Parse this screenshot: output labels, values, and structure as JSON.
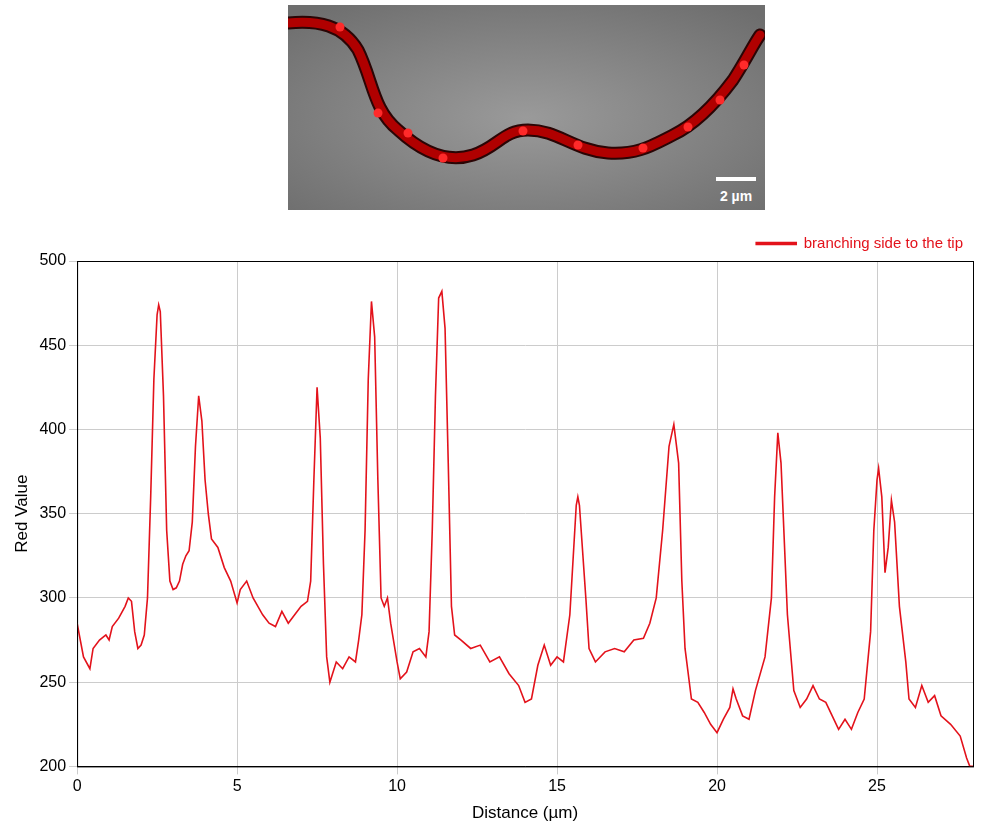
{
  "micrograph": {
    "scale_bar_label": "2 µm"
  },
  "chart_data": {
    "type": "line",
    "x_label": "Distance (µm)",
    "y_label": "Red Value",
    "xlim": [
      0,
      28
    ],
    "xticks": [
      0,
      5,
      10,
      15,
      20,
      25
    ],
    "ylim": [
      200,
      500
    ],
    "yticks": [
      200,
      250,
      300,
      350,
      400,
      450,
      500
    ],
    "grid": true,
    "legend": "upper right",
    "series": [
      {
        "name": "branching side to the tip",
        "color": "#e3121b",
        "x": [
          0,
          0.2,
          0.4,
          0.5,
          0.7,
          0.9,
          1.0,
          1.1,
          1.3,
          1.5,
          1.6,
          1.7,
          1.8,
          1.9,
          2.0,
          2.1,
          2.2,
          2.3,
          2.4,
          2.5,
          2.55,
          2.6,
          2.7,
          2.8,
          2.9,
          3.0,
          3.1,
          3.2,
          3.3,
          3.4,
          3.5,
          3.6,
          3.7,
          3.8,
          3.9,
          4.0,
          4.1,
          4.2,
          4.4,
          4.6,
          4.8,
          5.0,
          5.1,
          5.3,
          5.5,
          5.8,
          6.0,
          6.2,
          6.4,
          6.6,
          6.8,
          7.0,
          7.2,
          7.3,
          7.4,
          7.5,
          7.6,
          7.7,
          7.8,
          7.9,
          8.1,
          8.3,
          8.5,
          8.7,
          8.8,
          8.9,
          9.0,
          9.1,
          9.2,
          9.3,
          9.4,
          9.5,
          9.6,
          9.7,
          9.8,
          10.0,
          10.1,
          10.3,
          10.5,
          10.7,
          10.9,
          11.0,
          11.1,
          11.2,
          11.3,
          11.4,
          11.5,
          11.6,
          11.7,
          11.8,
          12.0,
          12.3,
          12.6,
          12.9,
          13.2,
          13.5,
          13.8,
          14.0,
          14.2,
          14.4,
          14.6,
          14.8,
          15.0,
          15.2,
          15.4,
          15.6,
          15.65,
          15.7,
          15.9,
          16.0,
          16.2,
          16.5,
          16.8,
          17.1,
          17.4,
          17.7,
          17.9,
          18.1,
          18.3,
          18.5,
          18.65,
          18.8,
          18.9,
          19.0,
          19.2,
          19.4,
          19.6,
          19.8,
          20.0,
          20.2,
          20.4,
          20.5,
          20.6,
          20.8,
          21.0,
          21.2,
          21.5,
          21.7,
          21.8,
          21.9,
          22.0,
          22.2,
          22.4,
          22.6,
          22.8,
          23.0,
          23.2,
          23.4,
          23.6,
          23.8,
          24.0,
          24.2,
          24.4,
          24.6,
          24.8,
          24.9,
          25.0,
          25.05,
          25.15,
          25.25,
          25.35,
          25.45,
          25.55,
          25.7,
          25.9,
          26.0,
          26.2,
          26.4,
          26.6,
          26.8,
          27.0,
          27.3,
          27.6,
          27.8,
          27.9,
          28.0
        ],
        "values": [
          285,
          265,
          258,
          270,
          275,
          278,
          275,
          283,
          288,
          295,
          300,
          298,
          280,
          270,
          272,
          278,
          300,
          360,
          430,
          468,
          474,
          470,
          420,
          340,
          310,
          305,
          306,
          310,
          320,
          325,
          328,
          345,
          390,
          420,
          405,
          370,
          350,
          335,
          330,
          318,
          310,
          297,
          305,
          310,
          300,
          290,
          285,
          283,
          292,
          285,
          290,
          295,
          298,
          310,
          370,
          425,
          395,
          320,
          265,
          250,
          262,
          258,
          265,
          262,
          275,
          290,
          340,
          430,
          476,
          455,
          370,
          300,
          295,
          300,
          285,
          262,
          252,
          256,
          268,
          270,
          265,
          280,
          340,
          420,
          478,
          482,
          460,
          380,
          295,
          278,
          275,
          270,
          272,
          262,
          265,
          255,
          248,
          238,
          240,
          260,
          272,
          260,
          265,
          262,
          290,
          355,
          360,
          355,
          300,
          270,
          262,
          268,
          270,
          268,
          275,
          276,
          285,
          300,
          340,
          390,
          403,
          380,
          310,
          270,
          240,
          238,
          232,
          225,
          220,
          228,
          235,
          246,
          240,
          230,
          228,
          245,
          265,
          300,
          360,
          398,
          380,
          290,
          245,
          235,
          240,
          248,
          240,
          238,
          230,
          222,
          228,
          222,
          232,
          240,
          280,
          340,
          370,
          377,
          360,
          315,
          330,
          358,
          345,
          295,
          262,
          240,
          235,
          248,
          238,
          242,
          230,
          225,
          218,
          205,
          200,
          200
        ]
      }
    ]
  }
}
